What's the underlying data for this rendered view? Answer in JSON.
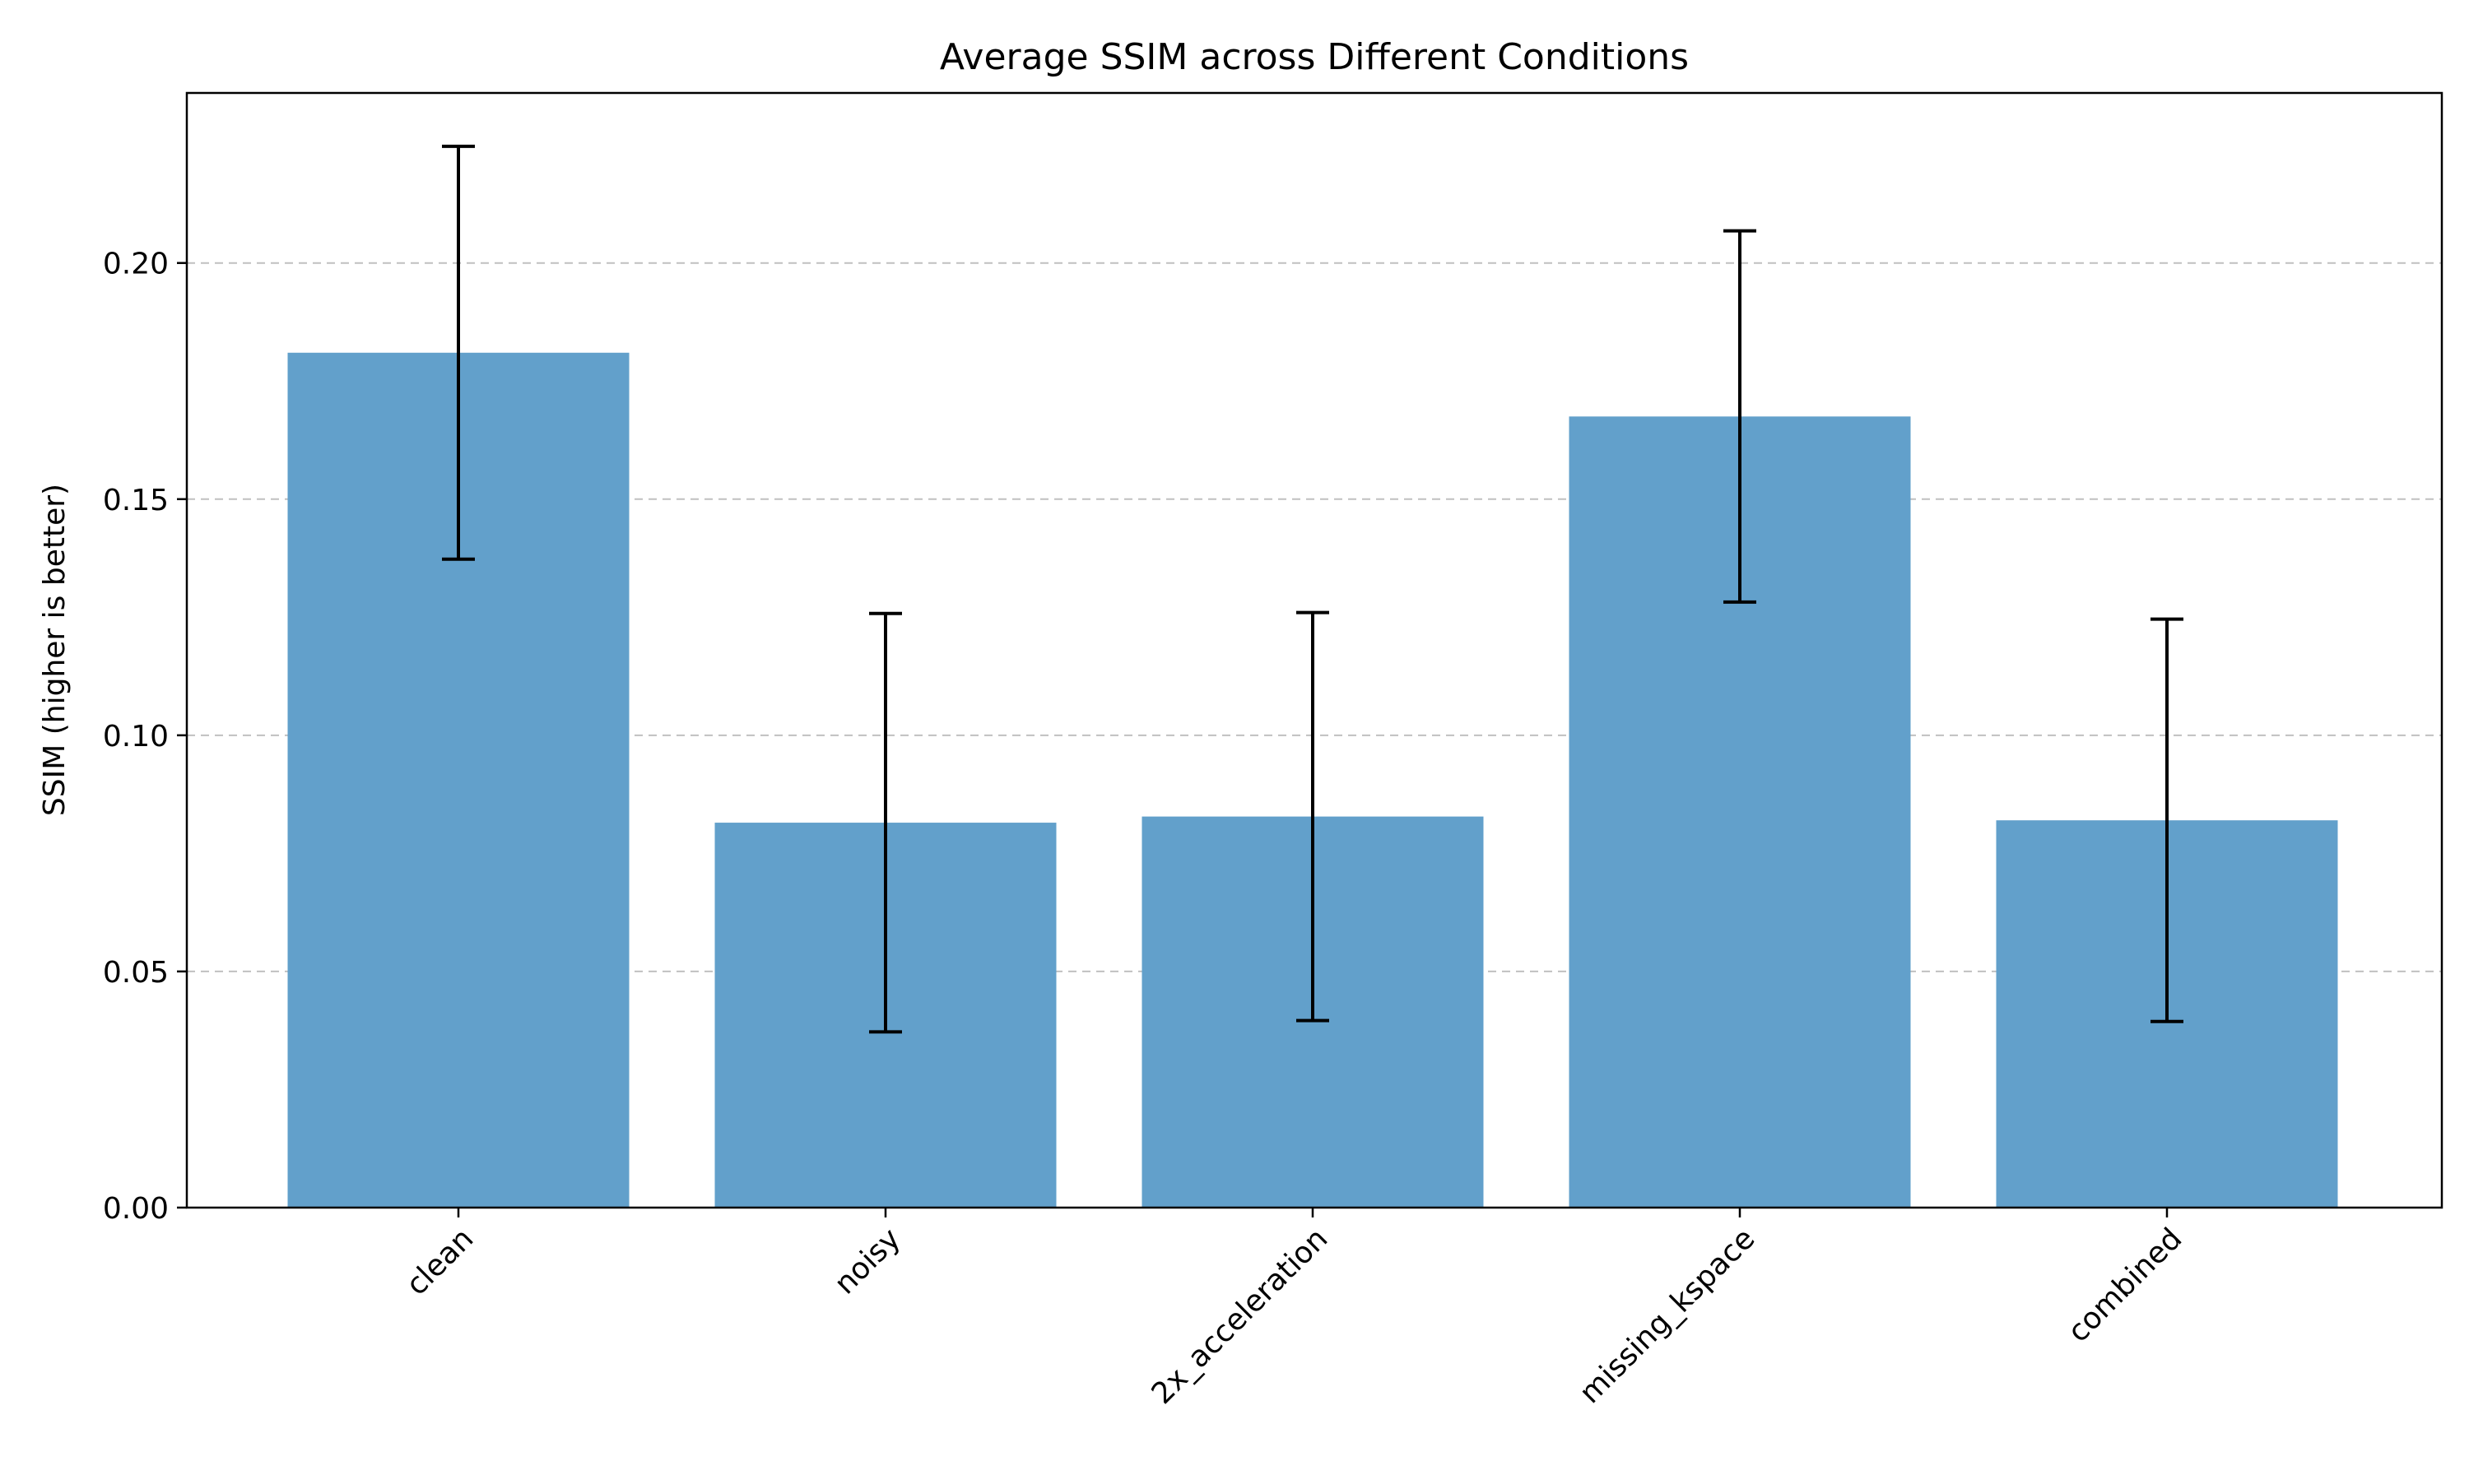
{
  "chart_data": {
    "type": "bar",
    "title": "Average SSIM across Different Conditions",
    "xlabel": "",
    "ylabel": "SSIM (higher is better)",
    "categories": [
      "clean",
      "noisy",
      "2x_acceleration",
      "missing_kspace",
      "combined"
    ],
    "values": [
      0.181,
      0.0815,
      0.0828,
      0.1675,
      0.082
    ],
    "errors": [
      0.0437,
      0.0443,
      0.0432,
      0.0393,
      0.0426
    ],
    "ylim": [
      0,
      0.236
    ],
    "yticks": [
      0.0,
      0.05,
      0.1,
      0.15,
      0.2
    ],
    "ytick_labels": [
      "0.00",
      "0.05",
      "0.10",
      "0.15",
      "0.20"
    ],
    "grid": "y, dashed",
    "bar_color": "#62a0cb",
    "error_color": "#000000",
    "grid_color": "#c0c0c0"
  }
}
